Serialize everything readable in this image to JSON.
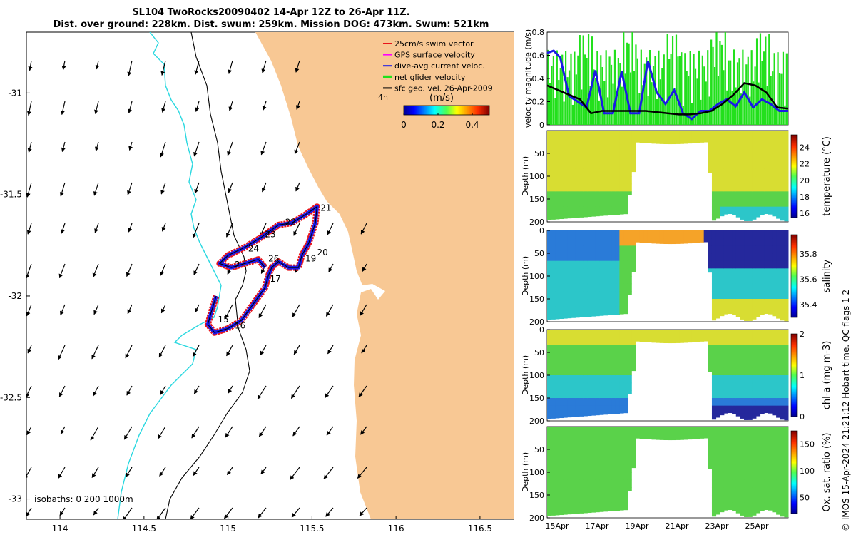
{
  "title_line1": "SL104 TwoRocks20090402 14-Apr 12Z to 26-Apr 11Z.",
  "title_line2": "Dist. over ground: 228km. Dist. swum: 259km. Mission DOG: 473km. Swum: 521km",
  "credit": "© IMOS 15-Apr-2024 21:21:12 Hobart time. QC flags 1  2",
  "colors": {
    "land": "#f8c894",
    "swim_vector": "#e8141a",
    "gps_velocity": "#ff00ff",
    "current": "#1a1ae6",
    "net_velocity": "#22e01c",
    "geo_velocity": "#000000",
    "isobath_0": "#000000",
    "isobath_200": "#2ad8e0"
  },
  "chart_data": [
    {
      "type": "map",
      "xlim": [
        113.8,
        116.7
      ],
      "ylim": [
        -33.1,
        -30.7
      ],
      "x_ticks": [
        114,
        114.5,
        115,
        115.5,
        116,
        116.5
      ],
      "x_tick_labels": [
        "114",
        "114.5",
        "115",
        "115.5",
        "116",
        "116.5"
      ],
      "y_ticks": [
        -31,
        -31.5,
        -32,
        -32.5,
        -33
      ],
      "y_tick_labels": [
        "-31",
        "-31.5",
        "-32",
        "-32.5",
        "-33"
      ],
      "legend": {
        "placement": "top-right",
        "entries": [
          "25cm/s swim vector",
          "GPS surface velocity",
          "dive-avg current veloc.",
          "net glider velocity",
          "sfc geo. vel. 26-Apr-2009"
        ]
      },
      "colorbar": {
        "label": "(m/s)",
        "ticks": [
          0,
          0.2,
          0.4
        ],
        "tick_labels": [
          "0",
          "0.2",
          "0.4"
        ],
        "range": [
          0,
          0.5
        ]
      },
      "scale_label": "4h",
      "isobaths_label": "isobaths: 0   200  1000m",
      "day_labels": [
        {
          "day": "15",
          "lon": 114.94,
          "lat": -32.13
        },
        {
          "day": "16",
          "lon": 115.04,
          "lat": -32.16
        },
        {
          "day": "17",
          "lon": 115.25,
          "lat": -31.93
        },
        {
          "day": "19",
          "lon": 115.46,
          "lat": -31.83
        },
        {
          "day": "20",
          "lon": 115.53,
          "lat": -31.8
        },
        {
          "day": "21",
          "lon": 115.55,
          "lat": -31.58
        },
        {
          "day": "22",
          "lon": 115.34,
          "lat": -31.65
        },
        {
          "day": "23",
          "lon": 115.22,
          "lat": -31.71
        },
        {
          "day": "24",
          "lon": 115.12,
          "lat": -31.78
        },
        {
          "day": "26",
          "lon": 115.24,
          "lat": -31.83
        },
        {
          "day": "2",
          "lon": 115.04,
          "lat": -31.86
        }
      ],
      "track": [
        [
          114.93,
          -32.0
        ],
        [
          114.9,
          -32.08
        ],
        [
          114.88,
          -32.14
        ],
        [
          114.92,
          -32.18
        ],
        [
          115.0,
          -32.16
        ],
        [
          115.08,
          -32.12
        ],
        [
          115.15,
          -32.04
        ],
        [
          115.22,
          -31.96
        ],
        [
          115.24,
          -31.9
        ],
        [
          115.26,
          -31.86
        ],
        [
          115.3,
          -31.83
        ],
        [
          115.36,
          -31.86
        ],
        [
          115.42,
          -31.86
        ],
        [
          115.44,
          -31.8
        ],
        [
          115.48,
          -31.74
        ],
        [
          115.52,
          -31.64
        ],
        [
          115.53,
          -31.56
        ],
        [
          115.46,
          -31.6
        ],
        [
          115.38,
          -31.64
        ],
        [
          115.3,
          -31.65
        ],
        [
          115.2,
          -31.71
        ],
        [
          115.1,
          -31.76
        ],
        [
          115.0,
          -31.8
        ],
        [
          114.95,
          -31.84
        ],
        [
          115.02,
          -31.86
        ],
        [
          115.1,
          -31.84
        ],
        [
          115.18,
          -31.82
        ],
        [
          115.22,
          -31.86
        ]
      ]
    },
    {
      "type": "line",
      "xlim": [
        15.0,
        26.0
      ],
      "ylim": [
        0,
        0.8
      ],
      "ylabel": "velocity magnitude (m/s)",
      "y_ticks": [
        0,
        0.2,
        0.4,
        0.6,
        0.8
      ],
      "y_tick_labels": [
        "0",
        "0.2",
        "0.4",
        "0.6",
        "0.8"
      ],
      "series": [
        {
          "x": [
            15.0,
            15.3,
            15.6,
            16.0,
            16.4,
            16.8,
            17.2,
            17.6,
            18.0,
            18.4,
            18.8,
            19.2,
            19.6,
            20.0,
            20.4,
            20.8,
            21.2,
            21.6,
            22.0,
            22.4,
            22.8,
            23.2,
            23.6,
            24.0,
            24.4,
            24.8,
            25.2,
            25.6,
            26.0
          ],
          "y": [
            0.62,
            0.64,
            0.58,
            0.25,
            0.2,
            0.15,
            0.47,
            0.1,
            0.1,
            0.46,
            0.1,
            0.1,
            0.55,
            0.28,
            0.18,
            0.3,
            0.1,
            0.05,
            0.12,
            0.12,
            0.18,
            0.22,
            0.16,
            0.28,
            0.15,
            0.22,
            0.18,
            0.12,
            0.12
          ]
        },
        {
          "x": [
            15.0,
            15.5,
            16.0,
            16.5,
            17.0,
            17.5,
            18.0,
            18.5,
            19.0,
            19.5,
            20.0,
            20.5,
            21.0,
            21.5,
            22.0,
            22.5,
            23.0,
            23.5,
            24.0,
            24.5,
            25.0,
            25.5,
            26.0
          ],
          "y": [
            0.34,
            0.3,
            0.26,
            0.22,
            0.1,
            0.12,
            0.12,
            0.12,
            0.12,
            0.12,
            0.11,
            0.1,
            0.09,
            0.09,
            0.1,
            0.12,
            0.18,
            0.26,
            0.36,
            0.34,
            0.28,
            0.15,
            0.14
          ]
        }
      ]
    },
    {
      "type": "heatmap",
      "ylabel": "Depth (m)",
      "colorbar_label": "temperature (°C)",
      "y_ticks": [
        50,
        100,
        150,
        200
      ],
      "cb_ticks": [
        16,
        18,
        20,
        22,
        24
      ],
      "cb_range": [
        15.5,
        25.5
      ],
      "palette": [
        "#25289c",
        "#2a7bd8",
        "#2cc6c9",
        "#5ad24a",
        "#d8dd32",
        "#f5a328",
        "#e23515",
        "#7a0e0e"
      ]
    },
    {
      "type": "heatmap",
      "ylabel": "Depth (m)",
      "colorbar_label": "salinity",
      "y_ticks": [
        0,
        50,
        100,
        150,
        200
      ],
      "cb_ticks": [
        35.4,
        35.6,
        35.8
      ],
      "cb_range": [
        35.3,
        35.95
      ],
      "palette": [
        "#25289c",
        "#2a7bd8",
        "#2cc6c9",
        "#5ad24a",
        "#d8dd32",
        "#f5a328",
        "#e23515",
        "#7a0e0e"
      ]
    },
    {
      "type": "heatmap",
      "ylabel": "Depth (m)",
      "colorbar_label": "chl-a (mg m-3)",
      "y_ticks": [
        0,
        50,
        100,
        150,
        200
      ],
      "cb_ticks": [
        0,
        1,
        2
      ],
      "cb_range": [
        0,
        2
      ],
      "palette": [
        "#25289c",
        "#2a7bd8",
        "#2cc6c9",
        "#5ad24a",
        "#d8dd32",
        "#f5a328",
        "#e23515",
        "#7a0e0e"
      ]
    },
    {
      "type": "heatmap",
      "ylabel": "Depth (m)",
      "colorbar_label": "Ox. sat. ratio (%)",
      "y_ticks": [
        50,
        100,
        150,
        200
      ],
      "cb_ticks": [
        50,
        100,
        150
      ],
      "cb_range": [
        20,
        175
      ],
      "x_tick_labels": [
        "15Apr",
        "17Apr",
        "19Apr",
        "21Apr",
        "23Apr",
        "25Apr"
      ],
      "palette": [
        "#25289c",
        "#2a7bd8",
        "#2cc6c9",
        "#5ad24a",
        "#d8dd32",
        "#f5a328",
        "#e23515",
        "#7a0e0e"
      ]
    }
  ]
}
